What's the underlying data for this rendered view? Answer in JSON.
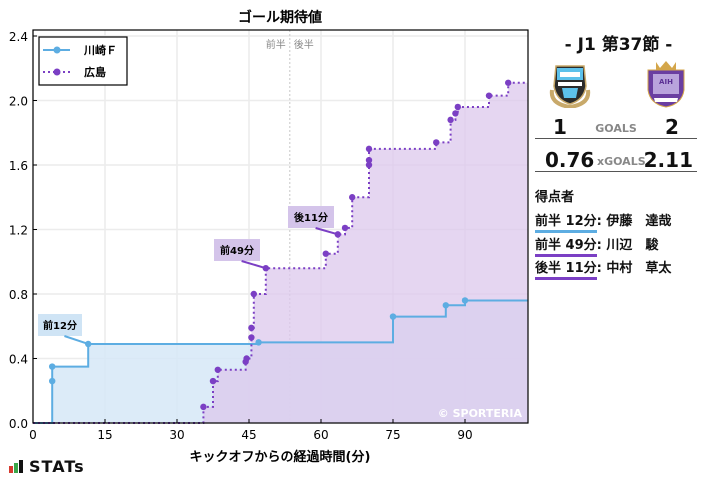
{
  "chart_data": {
    "type": "line",
    "subtype": "step-area",
    "title": "ゴール期待値",
    "xlabel": "キックオフからの経過時間(分)",
    "ylabel": "",
    "xlim": [
      0,
      103
    ],
    "ylim": [
      0,
      2.4
    ],
    "xticks": [
      0,
      15,
      30,
      45,
      60,
      75,
      90
    ],
    "yticks": [
      0.0,
      0.4,
      0.8,
      1.2,
      1.6,
      2.0,
      2.4
    ],
    "ytick_labels": [
      "0.0",
      "0.4",
      "0.8",
      "1.2",
      "1.6",
      "2.0",
      "2.4"
    ],
    "grid": true,
    "legend_position": "upper left",
    "halftime_marker": {
      "x": 53.5,
      "labels": [
        "前半",
        "後半"
      ]
    },
    "series": [
      {
        "name": "川崎Ｆ",
        "color": "#5dade2",
        "fill": "#d6e8f7",
        "line_style": "solid",
        "points": [
          [
            0,
            0
          ],
          [
            4,
            0.26
          ],
          [
            4,
            0.35
          ],
          [
            11.5,
            0.49
          ],
          [
            47,
            0.5
          ],
          [
            75,
            0.66
          ],
          [
            86,
            0.73
          ],
          [
            90,
            0.76
          ],
          [
            103,
            0.76
          ]
        ]
      },
      {
        "name": "広島",
        "color": "#7b3fc4",
        "fill": "#dcc8ec",
        "line_style": "dotted",
        "points": [
          [
            0,
            0
          ],
          [
            35.5,
            0.1
          ],
          [
            37.5,
            0.26
          ],
          [
            38.5,
            0.33
          ],
          [
            44.3,
            0.38
          ],
          [
            44.5,
            0.4
          ],
          [
            45.5,
            0.53
          ],
          [
            45.5,
            0.59
          ],
          [
            46,
            0.8
          ],
          [
            48.5,
            0.96
          ],
          [
            61,
            1.05
          ],
          [
            63.5,
            1.17
          ],
          [
            65,
            1.21
          ],
          [
            66.5,
            1.4
          ],
          [
            70,
            1.6
          ],
          [
            70,
            1.63
          ],
          [
            70,
            1.7
          ],
          [
            84,
            1.74
          ],
          [
            87,
            1.88
          ],
          [
            88,
            1.92
          ],
          [
            88.5,
            1.96
          ],
          [
            95,
            2.03
          ],
          [
            99,
            2.11
          ],
          [
            103,
            2.11
          ]
        ]
      }
    ],
    "annotations": [
      {
        "text": "前12分",
        "x": 11.5,
        "y": 0.49,
        "series": "川崎Ｆ"
      },
      {
        "text": "前49分",
        "x": 48.5,
        "y": 0.96,
        "series": "広島"
      },
      {
        "text": "後11分",
        "x": 63.5,
        "y": 1.17,
        "series": "広島"
      }
    ],
    "watermark": "© SPORTERIA"
  },
  "match": {
    "round": "- J1 第37節 -",
    "home_team": "川崎Ｆ",
    "away_team": "広島",
    "home_goals": "1",
    "away_goals": "2",
    "goals_label": "GOALS",
    "home_xg": "0.76",
    "away_xg": "2.11",
    "xg_label": "xGOALS"
  },
  "scorers": {
    "title": "得点者",
    "items": [
      {
        "time": "前半 12分",
        "name": ": 伊藤　達哉",
        "color": "#5dade2"
      },
      {
        "time": "前半 49分",
        "name": ": 川辺　駿",
        "color": "#7b3fc4"
      },
      {
        "time": "後半 11分",
        "name": ": 中村　草太",
        "color": "#7b3fc4"
      }
    ]
  },
  "branding": {
    "stats_logo": "STATs"
  }
}
